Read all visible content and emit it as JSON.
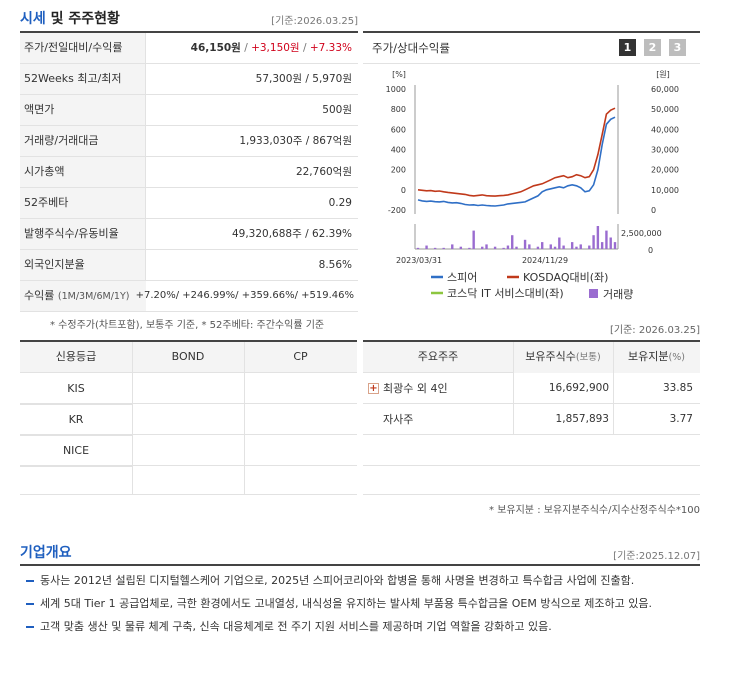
{
  "quote": {
    "title_a": "시세",
    "title_b": " 및 주주현황",
    "date": "[기준:2026.03.25]",
    "rows": [
      {
        "label": "주가/전일대비/수익률",
        "v1": "46,150원",
        "v2": "+3,150원",
        "v3": "+7.33%"
      },
      {
        "label": "52Weeks 최고/최저",
        "value": "57,300원 / 5,970원"
      },
      {
        "label": "액면가",
        "value": "500원"
      },
      {
        "label": "거래량/거래대금",
        "value": "1,933,030주 / 867억원"
      },
      {
        "label": "시가총액",
        "value": "22,760억원"
      },
      {
        "label": "52주베타",
        "value": "0.29"
      },
      {
        "label": "발행주식수/유동비율",
        "value": "49,320,688주 / 62.39%"
      },
      {
        "label": "외국인지분율",
        "value": "8.56%"
      }
    ],
    "returns_label": "수익률",
    "returns_sub": "(1M/3M/6M/1Y)",
    "returns_value": "+7.20%/ +246.99%/ +359.66%/ +519.46%",
    "footnote": "* 수정주가(차트포함), 보통주 기준, * 52주베타: 주간수익률 기준"
  },
  "chart_panel": {
    "title": "주가/상대수익률",
    "pages": [
      "1",
      "2",
      "3"
    ],
    "active_page": "1"
  },
  "chart_data": {
    "type": "line",
    "y_left_unit": "[%]",
    "y_right_unit": "[원]",
    "y_left_ticks": [
      "1000",
      "800",
      "600",
      "400",
      "200",
      "0",
      "-200"
    ],
    "y_right_ticks": [
      "60,000",
      "50,000",
      "40,000",
      "30,000",
      "20,000",
      "10,000",
      "0"
    ],
    "volume_ticks": [
      "2,500,000",
      "0"
    ],
    "x_ticks": [
      "2023/03/31",
      "2024/11/29"
    ],
    "ylim_left": [
      -200,
      1000
    ],
    "series": [
      {
        "name": "스피어",
        "color": "#2f6fc6",
        "values": [
          -100,
          -110,
          -115,
          -112,
          -118,
          -120,
          -115,
          -125,
          -130,
          -128,
          -135,
          -145,
          -150,
          -148,
          -155,
          -150,
          -155,
          -158,
          -160,
          -155,
          -150,
          -140,
          -135,
          -130,
          -125,
          -120,
          -100,
          -80,
          -60,
          -20,
          0,
          10,
          20,
          30,
          20,
          40,
          50,
          40,
          20,
          -20,
          -10,
          50,
          200,
          450,
          650,
          700,
          720
        ]
      },
      {
        "name": "KOSDAQ대비(좌)",
        "color": "#c0391b",
        "values": [
          0,
          -5,
          -10,
          -8,
          -15,
          -12,
          -20,
          -25,
          -30,
          -35,
          -40,
          -45,
          -55,
          -60,
          -55,
          -50,
          -58,
          -60,
          -62,
          -58,
          -55,
          -50,
          -40,
          -30,
          -20,
          0,
          20,
          40,
          50,
          60,
          80,
          100,
          120,
          130,
          140,
          120,
          130,
          150,
          140,
          120,
          130,
          200,
          350,
          550,
          750,
          790,
          810
        ]
      },
      {
        "name": "코스닥 IT 서비스대비(좌)",
        "color": "#8dc63f",
        "values": []
      }
    ],
    "volume_series": {
      "name": "거래량",
      "color": "#9a6cd0",
      "values": [
        0.05,
        0,
        0.15,
        0,
        0.05,
        0,
        0.05,
        0,
        0.2,
        0,
        0.1,
        0,
        0.05,
        0.8,
        0,
        0.1,
        0.2,
        0,
        0.1,
        0,
        0.05,
        0.15,
        0.6,
        0.1,
        0,
        0.4,
        0.2,
        0,
        0.1,
        0.3,
        0,
        0.2,
        0.1,
        0.5,
        0.15,
        0,
        0.3,
        0.1,
        0.2,
        0,
        0.15,
        0.6,
        1.0,
        0.3,
        0.8,
        0.5,
        0.3
      ]
    }
  },
  "credit": {
    "headers": [
      "신용등급",
      "BOND",
      "CP"
    ],
    "rows": [
      "KIS",
      "KR",
      "NICE"
    ]
  },
  "holders": {
    "date": "[기준: 2026.03.25]",
    "headers": [
      "주요주주",
      "보유주식수",
      "(보통)",
      "보유지분",
      "(%)"
    ],
    "rows": [
      {
        "name": "최광수 외 4인",
        "shares": "16,692,900",
        "pct": "33.85"
      },
      {
        "name": "자사주",
        "shares": "1,857,893",
        "pct": "3.77"
      }
    ],
    "footnote": "* 보유지분 : 보유지분주식수/지수산정주식수*100"
  },
  "overview": {
    "title": "기업개요",
    "date": "[기준:2025.12.07]",
    "items": [
      "동사는 2012년 설립된 디지털헬스케어 기업으로, 2025년 스피어코리아와 합병을 통해 사명을 변경하고 특수합금 사업에 진출함.",
      "세계 5대 Tier 1 공급업체로, 극한 환경에서도 고내열성, 내식성을 유지하는 발사체 부품용 특수합금을 OEM 방식으로 제조하고 있음.",
      "고객 맞춤 생산 및 물류 체계 구축, 신속 대응체계로 전 주기 지원 서비스를 제공하며 기업 역할을 강화하고 있음."
    ]
  }
}
